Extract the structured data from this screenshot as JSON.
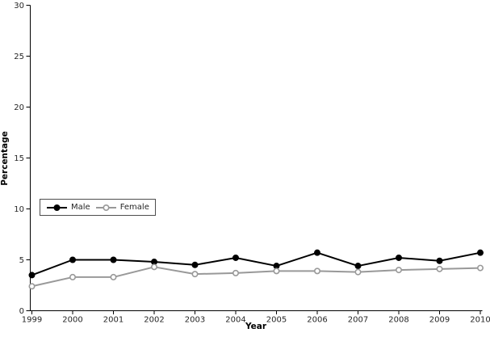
{
  "chart_data": {
    "type": "line",
    "x": [
      1999,
      2000,
      2001,
      2002,
      2003,
      2004,
      2005,
      2006,
      2007,
      2008,
      2009,
      2010
    ],
    "series": [
      {
        "name": "Male",
        "color": "#000000",
        "marker": "filled-circle",
        "values": [
          3.5,
          5.0,
          5.0,
          4.8,
          4.5,
          5.2,
          4.4,
          5.7,
          4.4,
          5.2,
          4.9,
          5.7
        ]
      },
      {
        "name": "Female",
        "color": "#999999",
        "marker": "open-circle",
        "values": [
          2.4,
          3.3,
          3.3,
          4.3,
          3.6,
          3.7,
          3.9,
          3.9,
          3.8,
          4.0,
          4.1,
          4.2
        ]
      }
    ],
    "xlabel": "Year",
    "ylabel": "Percentage",
    "ylim": [
      0,
      30
    ],
    "yticks": [
      0,
      5,
      10,
      15,
      20,
      25,
      30
    ],
    "grid": false,
    "legend_position": "middle-left"
  }
}
